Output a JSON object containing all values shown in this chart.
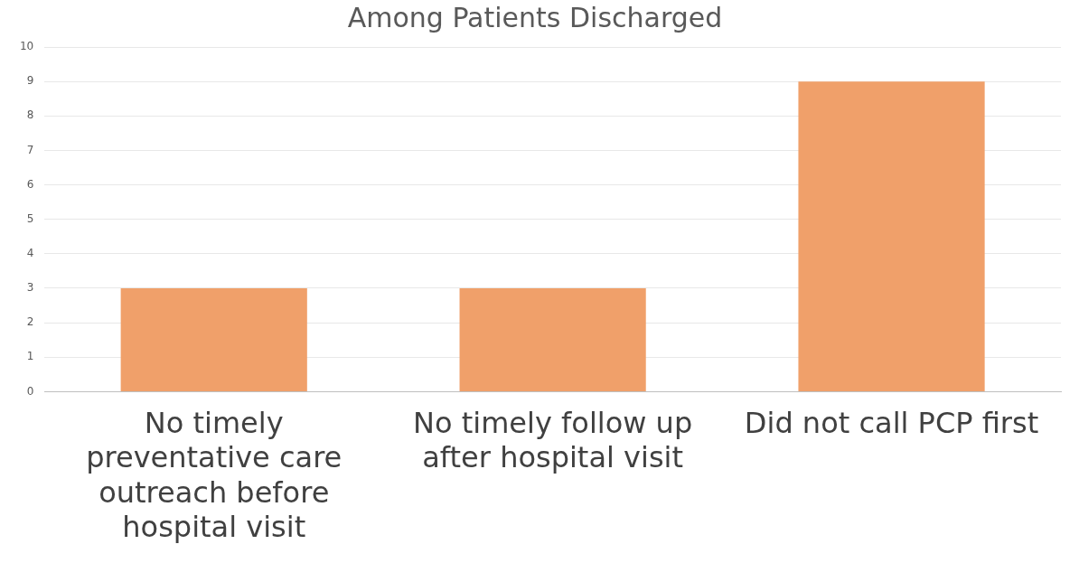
{
  "chart_data": {
    "type": "bar",
    "title": "Among Patients Discharged",
    "categories": [
      "No timely preventative care outreach before hospital visit",
      "No timely follow up after hospital visit",
      "Did not call PCP first"
    ],
    "values": [
      3,
      3,
      9
    ],
    "color": "#f0a06a",
    "ylim": [
      0,
      10
    ],
    "yticks": [
      0,
      1,
      2,
      3,
      4,
      5,
      6,
      7,
      8,
      9,
      10
    ],
    "grid": "y",
    "legend": false
  }
}
